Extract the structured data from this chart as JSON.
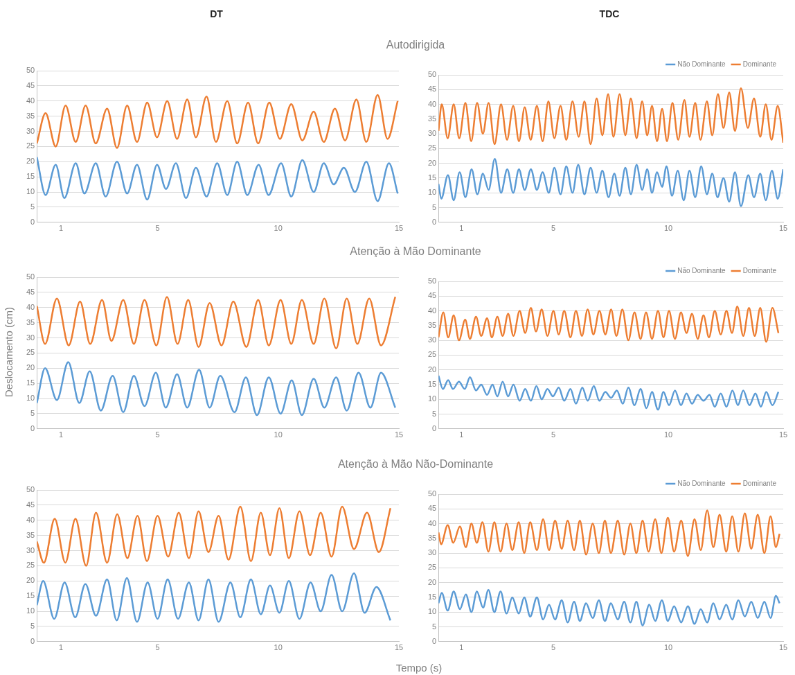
{
  "chart_data": [
    {
      "type": "line",
      "title": "Autodirigida",
      "subtitle": "DT",
      "xlim": [
        0,
        15
      ],
      "xticks": [
        1,
        5,
        10,
        15
      ],
      "ylim": [
        0,
        50
      ],
      "yticks": [
        0,
        5,
        10,
        15,
        20,
        25,
        30,
        35,
        40,
        45,
        50
      ],
      "grid": "y",
      "legend": false,
      "marker": "none",
      "series": [
        {
          "color": "#5b9bd5",
          "x": [
            0,
            0.36,
            0.78,
            1.14,
            1.61,
            1.97,
            2.44,
            2.85,
            3.32,
            3.74,
            4.15,
            4.57,
            4.98,
            5.35,
            5.76,
            6.18,
            6.59,
            7.03,
            7.47,
            7.89,
            8.3,
            8.72,
            9.19,
            9.6,
            10.12,
            10.54,
            11,
            11.47,
            11.89,
            12.3,
            12.72,
            13.18,
            13.65,
            14.12,
            14.59,
            14.95
          ],
          "values": [
            21.5,
            9,
            19,
            8,
            19.5,
            9.5,
            19.5,
            8.5,
            20,
            9.5,
            19,
            7.5,
            19,
            11,
            19.5,
            8,
            18,
            8.5,
            19.5,
            9,
            20,
            9,
            19,
            9,
            19.5,
            8.5,
            20.5,
            10,
            19.5,
            12.5,
            18,
            10,
            20,
            7,
            19.5,
            9.5
          ]
        },
        {
          "color": "#ed7d31",
          "x": [
            0,
            0.36,
            0.78,
            1.19,
            1.61,
            2.02,
            2.44,
            2.91,
            3.32,
            3.74,
            4.15,
            4.57,
            4.98,
            5.4,
            5.81,
            6.23,
            6.59,
            7.03,
            7.42,
            7.89,
            8.3,
            8.75,
            9.17,
            9.63,
            10.07,
            10.54,
            11,
            11.47,
            11.89,
            12.35,
            12.77,
            13.24,
            13.65,
            14.12,
            14.53,
            14.95
          ],
          "values": [
            26,
            36,
            25,
            38.5,
            26.5,
            38.5,
            26,
            37.5,
            24.5,
            38.5,
            26.5,
            39.5,
            28,
            40,
            27.5,
            40.5,
            28,
            41.5,
            26.5,
            40,
            26,
            39.5,
            26,
            39.5,
            27.5,
            39,
            27,
            36.5,
            26.5,
            37.5,
            27,
            40.5,
            26.5,
            42,
            27.5,
            40
          ]
        }
      ]
    },
    {
      "type": "line",
      "subtitle": "TDC",
      "xlim": [
        0,
        15
      ],
      "xticks": [
        1,
        5,
        10,
        15
      ],
      "ylim": [
        0,
        50
      ],
      "yticks": [
        0,
        5,
        10,
        15,
        20,
        25,
        30,
        35,
        40,
        45,
        50
      ],
      "grid": "y",
      "legend": "top right",
      "marker": "none",
      "series": [
        {
          "name": "Não Dominante",
          "color": "#5b9bd5",
          "x": [
            0,
            0.12,
            0.41,
            0.66,
            0.92,
            1.17,
            1.44,
            1.69,
            1.93,
            2.18,
            2.45,
            2.72,
            2.99,
            3.25,
            3.5,
            3.75,
            4.02,
            4.28,
            4.53,
            4.8,
            5.04,
            5.31,
            5.56,
            5.83,
            6.08,
            6.35,
            6.62,
            6.88,
            7.13,
            7.4,
            7.65,
            7.88,
            8.13,
            8.37,
            8.62,
            8.86,
            9.08,
            9.29,
            9.51,
            9.73,
            9.92,
            10.16,
            10.41,
            10.67,
            10.92,
            11.17,
            11.43,
            11.68,
            11.91,
            12.14,
            12.4,
            12.65,
            12.9,
            13.16,
            13.48,
            13.73,
            14,
            14.24,
            14.51,
            14.76,
            15
          ],
          "values": [
            13,
            8,
            16,
            7.5,
            17,
            8.5,
            18,
            9.5,
            16.5,
            11,
            21.5,
            10,
            18,
            10,
            18,
            11,
            18,
            11,
            17,
            10,
            18.5,
            9.5,
            19,
            10,
            19.5,
            9.5,
            18.5,
            10,
            17.5,
            8.5,
            16.5,
            9,
            18.5,
            9.5,
            19.5,
            11,
            18,
            10,
            17,
            12,
            19,
            9,
            17.5,
            7.5,
            17.5,
            8.5,
            19,
            9.5,
            16.5,
            8.5,
            15,
            7,
            17,
            5.5,
            16,
            8.5,
            16.5,
            7.5,
            17.5,
            8,
            18
          ]
        },
        {
          "name": "Dominante",
          "color": "#ed7d31",
          "x": [
            0,
            0.14,
            0.4,
            0.66,
            0.9,
            1.17,
            1.42,
            1.68,
            1.93,
            2.18,
            2.44,
            2.72,
            2.98,
            3.25,
            3.5,
            3.75,
            4.01,
            4.28,
            4.53,
            4.78,
            5.04,
            5.31,
            5.56,
            5.83,
            6.1,
            6.35,
            6.62,
            6.88,
            7.13,
            7.38,
            7.61,
            7.88,
            8.13,
            8.37,
            8.62,
            8.86,
            9.08,
            9.29,
            9.51,
            9.73,
            9.94,
            10.18,
            10.43,
            10.7,
            10.92,
            11.17,
            11.4,
            11.68,
            11.91,
            12.16,
            12.4,
            12.65,
            12.9,
            13.16,
            13.46,
            13.73,
            14,
            14.24,
            14.49,
            14.76,
            15
          ],
          "values": [
            31,
            40,
            28.5,
            40,
            28.5,
            40.5,
            27.5,
            40.5,
            30,
            40.5,
            26.5,
            40,
            28,
            39.5,
            27.5,
            39,
            28,
            39.5,
            27.5,
            41,
            28.5,
            39.5,
            28,
            41,
            29,
            41,
            26.5,
            42,
            29.5,
            43.5,
            29,
            43.5,
            29.5,
            42,
            28.5,
            41,
            29.5,
            39.5,
            27.5,
            38.5,
            27.5,
            40.5,
            28,
            41.5,
            29,
            40.5,
            28,
            41,
            29.5,
            43.5,
            32,
            44,
            31,
            45.5,
            32,
            42,
            29,
            40,
            28,
            39.5,
            27
          ]
        }
      ]
    },
    {
      "type": "line",
      "title": "Atenção à Mão Dominante",
      "ylabel": "Deslocamento (cm)",
      "xlim": [
        0,
        15
      ],
      "xticks": [
        1,
        5,
        10,
        15
      ],
      "ylim": [
        0,
        50
      ],
      "yticks": [
        0,
        5,
        10,
        15,
        20,
        25,
        30,
        35,
        40,
        45,
        50
      ],
      "grid": "y",
      "legend": false,
      "marker": "none",
      "series": [
        {
          "color": "#5b9bd5",
          "x": [
            0,
            0.34,
            0.83,
            1.3,
            1.76,
            2.19,
            2.65,
            3.14,
            3.58,
            4.02,
            4.46,
            4.93,
            5.34,
            5.81,
            6.23,
            6.72,
            7.16,
            7.6,
            8.19,
            8.66,
            9.12,
            9.61,
            10.1,
            10.56,
            10.98,
            11.47,
            11.91,
            12.4,
            12.84,
            13.33,
            13.82,
            14.26,
            14.85
          ],
          "values": [
            8.5,
            20,
            9.5,
            22,
            8.5,
            19,
            6,
            17.5,
            5.5,
            17.5,
            7.5,
            18.5,
            7,
            18,
            7,
            19.5,
            7,
            17.5,
            5.5,
            17,
            4.5,
            17,
            5,
            16,
            4.5,
            16.5,
            7,
            17,
            6,
            18.5,
            7,
            18.5,
            7
          ]
        },
        {
          "color": "#ed7d31",
          "x": [
            0,
            0.34,
            0.83,
            1.32,
            1.79,
            2.21,
            2.7,
            3.09,
            3.58,
            4.02,
            4.46,
            4.95,
            5.39,
            5.83,
            6.27,
            6.7,
            7.16,
            7.65,
            8.14,
            8.68,
            9.17,
            9.61,
            10.1,
            10.54,
            10.98,
            11.47,
            11.91,
            12.4,
            12.84,
            13.28,
            13.77,
            14.26,
            14.85
          ],
          "values": [
            40.5,
            28,
            43,
            27.5,
            42,
            28,
            42.5,
            29,
            42.5,
            28,
            42.5,
            27.5,
            43.5,
            28,
            42.5,
            27,
            41.5,
            27.5,
            42,
            27,
            42.5,
            27.5,
            42.5,
            28,
            42.5,
            28,
            43,
            26.5,
            43,
            28,
            43,
            27.5,
            43.5
          ]
        }
      ]
    },
    {
      "type": "line",
      "xlim": [
        0,
        15
      ],
      "xticks": [
        1,
        5,
        10,
        15
      ],
      "ylim": [
        0,
        50
      ],
      "yticks": [
        0,
        5,
        10,
        15,
        20,
        25,
        30,
        35,
        40,
        45,
        50
      ],
      "grid": "y",
      "legend": "top right",
      "marker": "none",
      "series": [
        {
          "name": "Não Dominante",
          "color": "#5b9bd5",
          "x": [
            0,
            0.19,
            0.42,
            0.63,
            0.89,
            1.14,
            1.37,
            1.63,
            1.86,
            2.11,
            2.35,
            2.56,
            2.79,
            3.03,
            3.26,
            3.53,
            3.77,
            4.02,
            4.26,
            4.49,
            4.74,
            4.98,
            5.23,
            5.47,
            5.74,
            5.98,
            6.26,
            6.49,
            6.76,
            7,
            7.26,
            7.51,
            7.76,
            8.02,
            8.26,
            8.53,
            8.79,
            9.05,
            9.29,
            9.55,
            9.79,
            10.03,
            10.29,
            10.55,
            10.79,
            11.03,
            11.28,
            11.53,
            11.79,
            12.02,
            12.28,
            12.53,
            12.79,
            13.03,
            13.26,
            13.53,
            13.79,
            14.03,
            14.26,
            14.53,
            14.79
          ],
          "values": [
            18,
            13.5,
            16.5,
            13.5,
            16,
            13.5,
            17.5,
            13,
            15,
            11.5,
            15,
            11,
            16,
            11,
            15,
            9.5,
            13.5,
            9.5,
            14.5,
            10,
            13.5,
            11,
            14,
            9.5,
            13.5,
            8.5,
            14,
            9.5,
            14.5,
            9.5,
            12.5,
            10.5,
            13,
            8.5,
            14,
            8,
            13.5,
            7,
            12.5,
            6.5,
            12.5,
            8,
            13,
            8,
            12,
            8.5,
            11.5,
            9.5,
            11.5,
            7.5,
            12,
            7.5,
            13,
            8,
            13,
            8,
            12,
            7.5,
            12.5,
            8,
            12.5
          ]
        },
        {
          "name": "Dominante",
          "color": "#ed7d31",
          "x": [
            0,
            0.21,
            0.42,
            0.66,
            0.89,
            1.16,
            1.37,
            1.63,
            1.86,
            2.11,
            2.32,
            2.56,
            2.79,
            3.03,
            3.26,
            3.53,
            3.77,
            4.02,
            4.24,
            4.49,
            4.74,
            5,
            5.23,
            5.47,
            5.74,
            5.98,
            6.24,
            6.49,
            6.74,
            7,
            7.26,
            7.51,
            7.74,
            8,
            8.26,
            8.53,
            8.79,
            9.03,
            9.29,
            9.55,
            9.79,
            10.03,
            10.29,
            10.55,
            10.79,
            11.03,
            11.28,
            11.53,
            11.77,
            12.02,
            12.28,
            12.53,
            12.77,
            13,
            13.26,
            13.51,
            13.76,
            14,
            14.26,
            14.53,
            14.79
          ],
          "values": [
            31,
            39.5,
            31,
            38.5,
            30,
            37,
            30.5,
            38,
            31.5,
            37.5,
            31,
            38,
            31.5,
            39,
            31.5,
            40,
            32.5,
            41,
            33,
            40.5,
            31.5,
            40,
            32,
            40,
            31,
            40,
            31.5,
            40.5,
            32,
            40,
            32,
            40.5,
            31.5,
            40.5,
            30,
            39.5,
            30.5,
            39.5,
            30.5,
            40,
            31,
            40,
            30.5,
            39.5,
            32.5,
            39,
            30.5,
            38.5,
            31,
            40,
            32,
            40,
            32.5,
            41.5,
            31.5,
            41,
            31.5,
            41,
            29.5,
            41,
            32.5
          ]
        }
      ]
    },
    {
      "type": "line",
      "title": "Atenção à Mão Não-Dominante",
      "xlabel": "Tempo (s)",
      "xlim": [
        0,
        15
      ],
      "xticks": [
        1,
        5,
        10,
        15
      ],
      "ylim": [
        0,
        50
      ],
      "yticks": [
        0,
        5,
        10,
        15,
        20,
        25,
        30,
        35,
        40,
        45,
        50
      ],
      "grid": "y",
      "legend": false,
      "marker": "none",
      "series": [
        {
          "color": "#5b9bd5",
          "x": [
            0,
            0.26,
            0.72,
            1.15,
            1.59,
            2.01,
            2.45,
            2.91,
            3.31,
            3.73,
            4.15,
            4.59,
            5,
            5.42,
            5.85,
            6.3,
            6.7,
            7.11,
            7.53,
            8.02,
            8.43,
            8.87,
            9.28,
            9.66,
            10.05,
            10.44,
            10.88,
            11.34,
            11.76,
            12.21,
            12.65,
            13.14,
            13.58,
            14.07,
            14.65
          ],
          "values": [
            12,
            20,
            7.5,
            19.5,
            8,
            19,
            8.5,
            20.5,
            7,
            21,
            6.5,
            19.5,
            7.5,
            20.5,
            7.5,
            19.5,
            7,
            20.5,
            6.5,
            19.5,
            8,
            20.5,
            9,
            18.5,
            9.5,
            20,
            7.5,
            19.5,
            10,
            22,
            10,
            22.5,
            9.5,
            18,
            7
          ]
        },
        {
          "color": "#ed7d31",
          "x": [
            0,
            0.29,
            0.74,
            1.18,
            1.6,
            2.04,
            2.45,
            2.91,
            3.33,
            3.75,
            4.17,
            4.56,
            5,
            5.44,
            5.88,
            6.3,
            6.7,
            7.11,
            7.53,
            7.94,
            8.43,
            8.87,
            9.28,
            9.66,
            10.05,
            10.44,
            10.88,
            11.32,
            11.76,
            12.21,
            12.65,
            13.14,
            13.68,
            14.17,
            14.65
          ],
          "values": [
            33,
            26,
            40.5,
            26,
            40.5,
            25,
            42.5,
            26,
            42,
            27.5,
            41.5,
            26.5,
            41.5,
            28,
            42.5,
            27.5,
            43,
            29.5,
            41.5,
            27,
            44.5,
            26.5,
            42.5,
            28.5,
            44,
            27.5,
            43,
            28.5,
            42.5,
            28,
            44.5,
            30.5,
            42.5,
            29.5,
            44
          ]
        }
      ]
    },
    {
      "type": "line",
      "xlim": [
        0,
        15
      ],
      "xticks": [
        1,
        5,
        10,
        15
      ],
      "ylim": [
        0,
        50
      ],
      "yticks": [
        0,
        5,
        10,
        15,
        20,
        25,
        30,
        35,
        40,
        45,
        50
      ],
      "grid": "y",
      "legend": "top right",
      "marker": "none",
      "series": [
        {
          "name": "Não Dominante",
          "color": "#5b9bd5",
          "x": [
            0,
            0.14,
            0.4,
            0.66,
            0.93,
            1.19,
            1.43,
            1.67,
            1.94,
            2.17,
            2.43,
            2.7,
            2.96,
            3.21,
            3.49,
            3.73,
            3.99,
            4.28,
            4.55,
            4.81,
            5.07,
            5.36,
            5.62,
            5.9,
            6.15,
            6.42,
            6.71,
            6.98,
            7.24,
            7.5,
            7.8,
            8.08,
            8.35,
            8.61,
            8.88,
            9.17,
            9.43,
            9.72,
            9.98,
            10.25,
            10.56,
            10.85,
            11.14,
            11.41,
            11.69,
            11.96,
            12.23,
            12.52,
            12.78,
            13.05,
            13.33,
            13.61,
            13.89,
            14.18,
            14.45,
            14.68,
            14.84
          ],
          "values": [
            13,
            16.5,
            10.5,
            17,
            11,
            16,
            10,
            17,
            11.5,
            17.5,
            10,
            17,
            9.5,
            15,
            9.5,
            15,
            8.5,
            15,
            7.5,
            12.5,
            7.5,
            14,
            6.5,
            13.5,
            7,
            13,
            8,
            14,
            7,
            13,
            7.5,
            13.5,
            6.5,
            13.5,
            5.5,
            12.5,
            7,
            14,
            7,
            12,
            6.5,
            12,
            6,
            11,
            6.5,
            13,
            7.5,
            12.5,
            7.5,
            14,
            8.5,
            13.5,
            8,
            13.5,
            8,
            15.5,
            13
          ]
        },
        {
          "name": "Dominante",
          "color": "#ed7d31",
          "x": [
            0,
            0.11,
            0.4,
            0.64,
            0.93,
            1.19,
            1.43,
            1.67,
            1.91,
            2.17,
            2.43,
            2.7,
            2.96,
            3.21,
            3.49,
            3.73,
            3.99,
            4.28,
            4.55,
            4.81,
            5.07,
            5.36,
            5.62,
            5.9,
            6.15,
            6.42,
            6.71,
            6.98,
            7.24,
            7.5,
            7.8,
            8.08,
            8.35,
            8.61,
            8.88,
            9.14,
            9.43,
            9.7,
            9.98,
            10.25,
            10.56,
            10.85,
            11.14,
            11.41,
            11.69,
            11.96,
            12.23,
            12.52,
            12.78,
            13.05,
            13.33,
            13.61,
            13.89,
            14.18,
            14.45,
            14.68,
            14.84
          ],
          "values": [
            37,
            33,
            39.5,
            33.5,
            39,
            32,
            40,
            33.5,
            40.5,
            30.5,
            40.5,
            30.5,
            40,
            31,
            40.5,
            30,
            40.5,
            31,
            41.5,
            31,
            41,
            31.5,
            41,
            31,
            41,
            29.5,
            40,
            30,
            41,
            30,
            41,
            29.5,
            40,
            30,
            41,
            30.5,
            41.5,
            30,
            42,
            30.5,
            41,
            29,
            41.5,
            31,
            44.5,
            32,
            43,
            30.5,
            42.5,
            30.5,
            43.5,
            31.5,
            43,
            30,
            42.5,
            32,
            36.5
          ]
        }
      ]
    }
  ]
}
